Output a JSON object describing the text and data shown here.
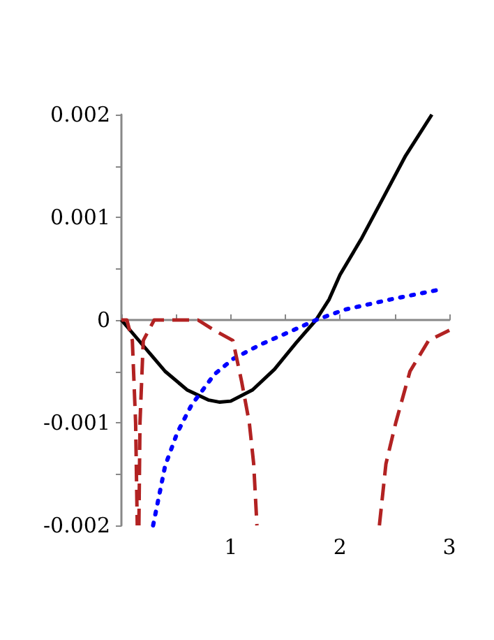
{
  "chart_data": {
    "type": "line",
    "xlim": [
      0,
      3
    ],
    "ylim": [
      -0.002,
      0.002
    ],
    "xticks": [
      {
        "value": 0,
        "label": null
      },
      {
        "value": 0.5,
        "label": null
      },
      1,
      {
        "value": 1.5,
        "label": null
      },
      2,
      {
        "value": 2.5,
        "label": null
      },
      3
    ],
    "yticks": [
      -0.002,
      {
        "value": -0.0015,
        "label": null
      },
      -0.001,
      {
        "value": -0.0005,
        "label": null
      },
      0,
      {
        "value": 0.0005,
        "label": null
      },
      0.001,
      {
        "value": 0.0015,
        "label": null
      },
      0.002
    ],
    "marker": "none",
    "series": [
      {
        "color": "#000000",
        "line_style": "solid",
        "x": [
          0,
          0.2,
          0.4,
          0.6,
          0.8,
          0.9,
          1.0,
          1.2,
          1.4,
          1.6,
          1.78,
          1.9,
          2.0,
          2.2,
          2.4,
          2.6,
          2.84
        ],
        "values": [
          0,
          -0.00025,
          -0.0005,
          -0.00068,
          -0.00078,
          -0.0008,
          -0.00079,
          -0.00068,
          -0.00048,
          -0.00022,
          0,
          0.0002,
          0.00044,
          0.0008,
          0.0012,
          0.0016,
          0.002
        ]
      },
      {
        "color": "#0000ff",
        "line_style": "dotted",
        "x": [
          0.29,
          0.4,
          0.51,
          0.64,
          0.85,
          1.02,
          1.27,
          1.57,
          1.78,
          2.04,
          2.46,
          2.93
        ],
        "values": [
          -0.002,
          -0.00142,
          -0.0011,
          -0.00083,
          -0.00053,
          -0.00038,
          -0.00024,
          -0.0001,
          0,
          0.0001,
          0.0002,
          0.0003
        ]
      },
      {
        "color": "#b22222",
        "line_style": "dashed",
        "x": [
          0,
          0.05,
          0.1,
          0.13,
          0.145,
          0.15,
          0.16,
          0.17,
          0.2,
          0.3,
          0.5,
          0.7,
          0.85,
          1.02,
          1.1,
          1.17,
          1.21,
          1.24,
          1.8,
          2.36,
          2.42,
          2.51,
          2.64,
          2.81,
          3.0
        ],
        "values": [
          0,
          0,
          -0.0002,
          -0.001,
          -0.002,
          null,
          -0.002,
          -0.001,
          -0.0002,
          0,
          0,
          0,
          -0.0001,
          -0.0002,
          -0.0006,
          -0.001,
          -0.0014,
          -0.002,
          null,
          -0.002,
          -0.0014,
          -0.001,
          -0.0005,
          -0.0002,
          -0.0001
        ]
      }
    ]
  }
}
